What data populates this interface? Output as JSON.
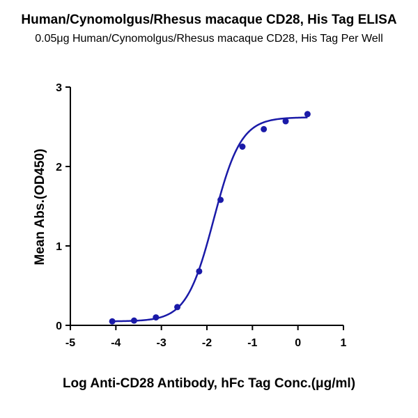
{
  "chart_data": {
    "type": "scatter",
    "title": "Human/Cynomolgus/Rhesus macaque CD28, His Tag ELISA",
    "subtitle": "0.05μg Human/Cynomolgus/Rhesus macaque CD28, His Tag Per Well",
    "xlabel": "Log Anti-CD28 Antibody, hFc Tag Conc.(μg/ml)",
    "ylabel": "Mean Abs.(OD450)",
    "xlim": [
      -5,
      1
    ],
    "ylim": [
      0,
      3
    ],
    "x_ticks": [
      "-5",
      "-4",
      "-3",
      "-2",
      "-1",
      "0",
      "1"
    ],
    "y_ticks": [
      "0",
      "1",
      "2",
      "3"
    ],
    "grid": false,
    "colors": {
      "series": "#1a1aa8",
      "axis": "#000000"
    },
    "series": [
      {
        "x": [
          -4.08,
          -3.6,
          -3.12,
          -2.65,
          -2.17,
          -1.7,
          -1.22,
          -0.75,
          -0.27,
          0.21
        ],
        "y": [
          0.05,
          0.06,
          0.1,
          0.23,
          0.68,
          1.58,
          2.25,
          2.47,
          2.57,
          2.66
        ],
        "fit": "sigmoidal"
      }
    ]
  }
}
